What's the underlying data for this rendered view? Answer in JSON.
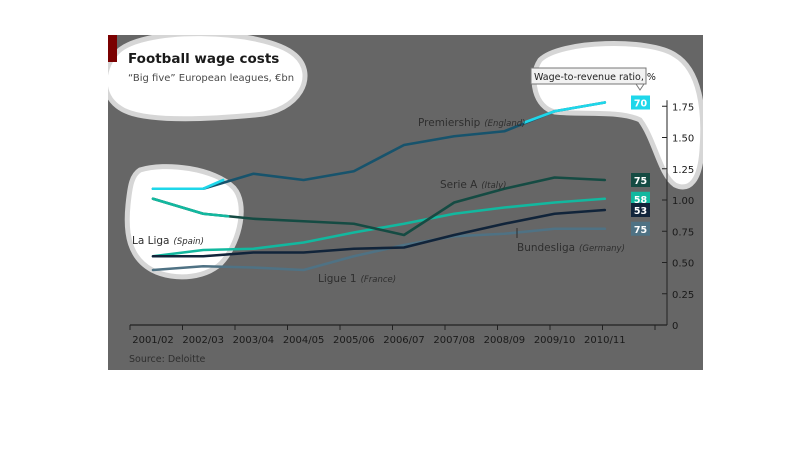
{
  "title": "Football wage costs",
  "subtitle": "“Big five” European leagues, €bn",
  "source": "Source: Deloitte",
  "legend_box": "Wage-to-revenue ratio, %",
  "colors": {
    "panel": "#666666",
    "highlight": "#ffffff",
    "label": "#2e2e2e",
    "premiership": "#17536c",
    "serie_a": "#154b43",
    "bundesliga": "#11243a",
    "ligue_1": "#4f7284",
    "la_liga": "#12b89f",
    "ratio_line": "#1ed7ea",
    "accent": "#7a0000"
  },
  "chart_data": {
    "type": "line",
    "title": "Football wage costs",
    "subtitle": "“Big five” European leagues, €bn",
    "categories": [
      "2001/02",
      "2002/03",
      "2003/04",
      "2004/05",
      "2005/06",
      "2006/07",
      "2007/08",
      "2008/09",
      "2009/10",
      "2010/11"
    ],
    "ylim": [
      0,
      1.95
    ],
    "yticks": [
      0,
      0.25,
      0.5,
      0.75,
      1.0,
      1.25,
      1.5,
      1.75
    ],
    "ytick_labels": [
      "0",
      "0.25",
      "0.50",
      "0.75",
      "1.00",
      "1.25",
      "1.50",
      "1.75"
    ],
    "grid": false,
    "series": [
      {
        "name": "Premiership",
        "qualifier": "(England)",
        "color_key": "premiership",
        "ratio": "70",
        "values": [
          1.09,
          1.09,
          1.21,
          1.16,
          1.23,
          1.44,
          1.51,
          1.55,
          1.71,
          1.78
        ]
      },
      {
        "name": "Serie A",
        "qualifier": "(Italy)",
        "color_key": "serie_a",
        "ratio": "75",
        "values": [
          1.01,
          0.89,
          0.85,
          0.83,
          0.81,
          0.72,
          0.98,
          1.09,
          1.18,
          1.16
        ]
      },
      {
        "name": "La Liga",
        "qualifier": "(Spain)",
        "color_key": "la_liga",
        "ratio": "",
        "values": [
          0.55,
          0.6,
          0.61,
          0.66,
          0.74,
          0.81,
          0.89,
          0.94,
          0.98,
          1.01
        ]
      },
      {
        "name": "Bundesliga",
        "qualifier": "(Germany)",
        "color_key": "bundesliga",
        "ratio": "53",
        "values": [
          0.55,
          0.55,
          0.58,
          0.58,
          0.61,
          0.62,
          0.72,
          0.81,
          0.89,
          0.92
        ]
      },
      {
        "name": "Ligue 1",
        "qualifier": "(France)",
        "color_key": "ligue_1",
        "ratio": "75",
        "values": [
          0.44,
          0.47,
          0.46,
          0.44,
          0.55,
          0.64,
          0.71,
          0.73,
          0.77,
          0.77
        ]
      }
    ],
    "ratio_labels": [
      {
        "text": "70",
        "color_key": "ratio_line",
        "y": 1.78
      },
      {
        "text": "75",
        "color_key": "serie_a",
        "y": 1.16
      },
      {
        "text": "58",
        "color_key": "la_liga",
        "y": 1.01
      },
      {
        "text": "53",
        "color_key": "bundesliga",
        "y": 0.92
      },
      {
        "text": "75",
        "color_key": "ligue_1",
        "y": 0.77
      }
    ]
  }
}
